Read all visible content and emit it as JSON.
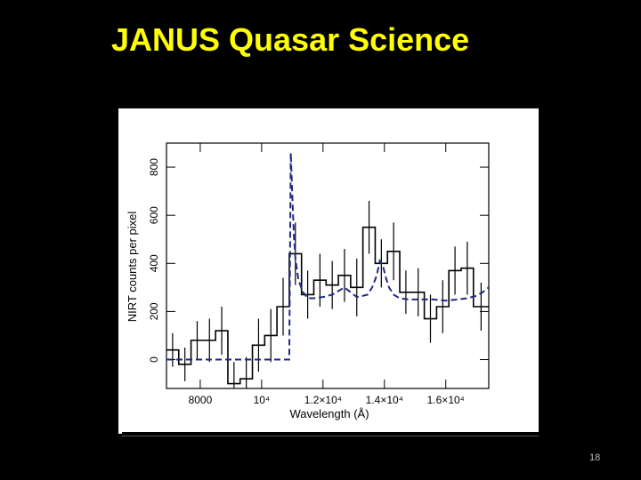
{
  "slide": {
    "title": "JANUS Quasar Science",
    "page_number": "18"
  },
  "chart_data": {
    "type": "line",
    "xlabel": "Wavelength (Å)",
    "ylabel": "NIRT counts per pixel",
    "xlim": [
      6900,
      17400
    ],
    "ylim": [
      -120,
      900
    ],
    "x_ticks": [
      {
        "value": 8000,
        "label": "8000"
      },
      {
        "value": 10000,
        "label": "10⁴"
      },
      {
        "value": 12000,
        "label": "1.2×10⁴"
      },
      {
        "value": 14000,
        "label": "1.4×10⁴"
      },
      {
        "value": 16000,
        "label": "1.6×10⁴"
      }
    ],
    "y_ticks": [
      {
        "value": 0,
        "label": "0"
      },
      {
        "value": 200,
        "label": "200"
      },
      {
        "value": 400,
        "label": "400"
      },
      {
        "value": 600,
        "label": "600"
      },
      {
        "value": 800,
        "label": "800"
      }
    ],
    "grid": false,
    "legend": "none",
    "series": [
      {
        "style": "step",
        "color": "#000000",
        "bin_edges": [
          6900,
          7300,
          7700,
          8100,
          8500,
          8900,
          9300,
          9700,
          10100,
          10500,
          10900,
          11300,
          11700,
          12100,
          12500,
          12900,
          13300,
          13700,
          14100,
          14500,
          14900,
          15300,
          15700,
          16100,
          16500,
          16900,
          17400
        ],
        "values": [
          40,
          -20,
          80,
          80,
          120,
          -100,
          -80,
          60,
          100,
          220,
          440,
          270,
          330,
          310,
          350,
          300,
          550,
          400,
          450,
          280,
          280,
          170,
          220,
          370,
          380,
          220
        ],
        "errors": [
          70,
          70,
          80,
          90,
          100,
          90,
          90,
          110,
          110,
          120,
          130,
          100,
          110,
          100,
          110,
          120,
          110,
          100,
          120,
          90,
          100,
          100,
          110,
          100,
          110,
          100
        ]
      },
      {
        "style": "dashed",
        "color": "#1f2a80",
        "x": [
          6900,
          7300,
          7700,
          8100,
          8500,
          8900,
          9300,
          9700,
          10100,
          10500,
          10900,
          10950,
          11000,
          11050,
          11100,
          11200,
          11350,
          11500,
          11700,
          12000,
          12300,
          12500,
          12700,
          12900,
          13100,
          13300,
          13450,
          13600,
          13750,
          13850,
          13950,
          14050,
          14150,
          14300,
          14500,
          14800,
          15200,
          15600,
          16000,
          16400,
          16700,
          17000,
          17200,
          17400
        ],
        "y": [
          0,
          0,
          0,
          0,
          0,
          0,
          0,
          0,
          0,
          0,
          0,
          860,
          680,
          520,
          420,
          330,
          280,
          255,
          255,
          260,
          270,
          285,
          300,
          280,
          260,
          265,
          270,
          300,
          350,
          410,
          390,
          340,
          300,
          270,
          255,
          250,
          250,
          250,
          245,
          250,
          255,
          265,
          280,
          300
        ]
      }
    ]
  }
}
